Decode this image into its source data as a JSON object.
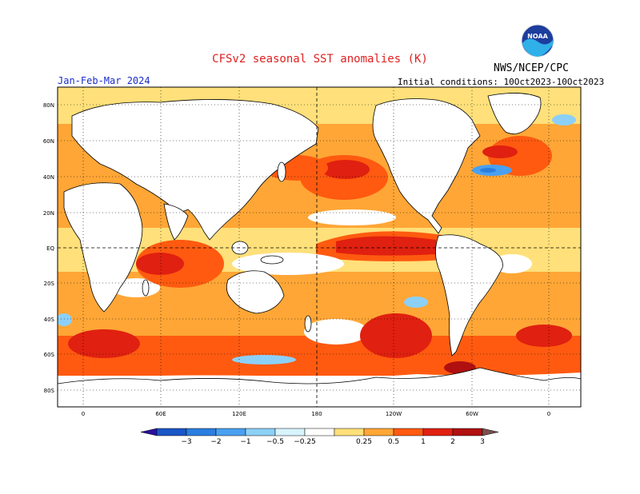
{
  "header": {
    "title": "CFSv2 seasonal SST anomalies (K)",
    "agency": "NWS/NCEP/CPC",
    "season": "Jan-Feb-Mar 2024",
    "initial_conditions": "Initial conditions: 10Oct2023-10Oct2023",
    "logo_text": "NOAA"
  },
  "map": {
    "lat_labels": [
      "80N",
      "60N",
      "40N",
      "20N",
      "EQ",
      "20S",
      "40S",
      "60S",
      "80S"
    ],
    "lon_labels": [
      "0",
      "60E",
      "120E",
      "180",
      "120W",
      "60W",
      "0"
    ]
  },
  "colorbar": {
    "tick_labels": [
      "-3",
      "-2",
      "-1",
      "-0.5",
      "-0.25",
      "0.25",
      "0.5",
      "1",
      "2",
      "3"
    ],
    "colors": [
      "#2a0fa0",
      "#1a55c8",
      "#2a7ee0",
      "#4aa0f0",
      "#8cd0f8",
      "#d8f4ff",
      "#ffffff",
      "#ffe07a",
      "#ffa636",
      "#ff5a10",
      "#e02010",
      "#b01010",
      "#7a5050"
    ]
  },
  "colors": {
    "title": "#e02020",
    "season": "#1a2ccc",
    "land": "#ffffff",
    "coast": "#000000"
  }
}
